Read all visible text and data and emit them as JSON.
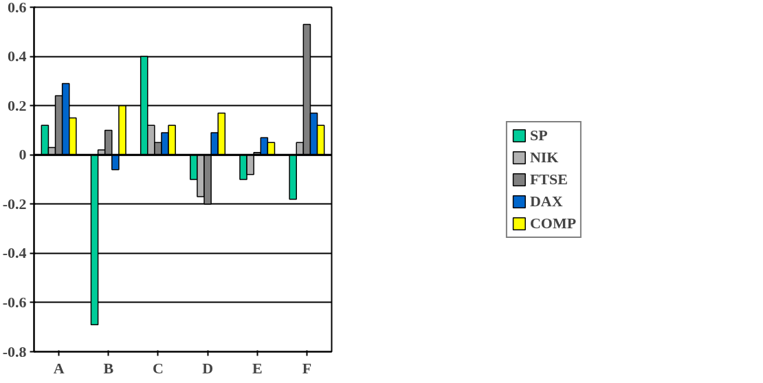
{
  "chart_data": {
    "type": "bar",
    "categories": [
      "A",
      "B",
      "C",
      "D",
      "E",
      "F"
    ],
    "series": [
      {
        "name": "SP",
        "color": "#00cc99",
        "values": [
          0.12,
          -0.69,
          0.4,
          -0.1,
          -0.1,
          -0.18
        ]
      },
      {
        "name": "NIK",
        "color": "#b2b2b2",
        "values": [
          0.03,
          0.02,
          0.12,
          -0.17,
          -0.08,
          0.05
        ]
      },
      {
        "name": "FTSE",
        "color": "#808080",
        "values": [
          0.24,
          0.1,
          0.05,
          -0.2,
          0.01,
          0.53
        ]
      },
      {
        "name": "DAX",
        "color": "#0066cc",
        "values": [
          0.29,
          -0.06,
          0.09,
          0.09,
          0.07,
          0.17
        ]
      },
      {
        "name": "COMP",
        "color": "#ffff00",
        "values": [
          0.15,
          0.2,
          0.12,
          0.17,
          0.05,
          0.12
        ]
      }
    ],
    "ylim": [
      -0.8,
      0.6
    ],
    "yticks": [
      -0.8,
      -0.6,
      -0.4,
      -0.2,
      0,
      0.2,
      0.4,
      0.6
    ],
    "grid": "y",
    "legend": "right"
  }
}
